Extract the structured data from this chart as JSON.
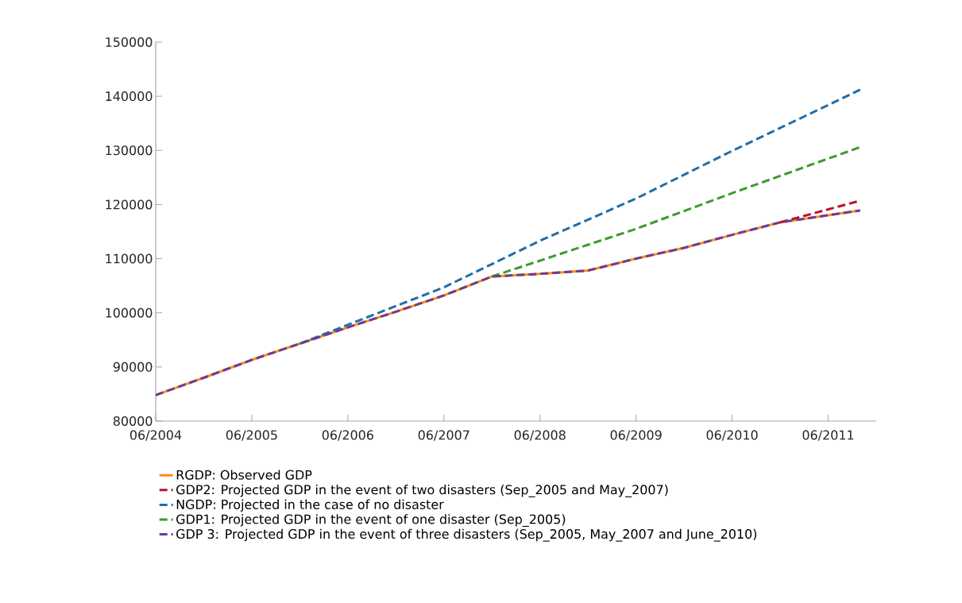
{
  "chart_data": {
    "type": "line",
    "xlim": [
      "2004-06",
      "2011-12"
    ],
    "xticks": [
      {
        "value": "2004-06",
        "label": "06/2004"
      },
      {
        "value": "2005-06",
        "label": "06/2005"
      },
      {
        "value": "2006-06",
        "label": "06/2006"
      },
      {
        "value": "2007-06",
        "label": "06/2007"
      },
      {
        "value": "2008-06",
        "label": "06/2008"
      },
      {
        "value": "2009-06",
        "label": "06/2009"
      },
      {
        "value": "2010-06",
        "label": "06/2010"
      },
      {
        "value": "2011-06",
        "label": "06/2011"
      }
    ],
    "ylim": [
      80000,
      150000
    ],
    "yticks": [
      80000,
      90000,
      100000,
      110000,
      120000,
      130000,
      140000,
      150000
    ],
    "grid": false,
    "legend": "bottom",
    "marker": "none",
    "series": [
      {
        "name": "RGDP: Observed GDP",
        "color": "#ff8c1a",
        "line_style": "solid",
        "x": [
          "2004-06",
          "2004-12",
          "2005-06",
          "2005-12",
          "2006-06",
          "2006-12",
          "2007-06",
          "2007-12",
          "2008-06",
          "2008-12",
          "2009-06",
          "2009-12",
          "2010-06",
          "2010-12",
          "2011-10"
        ],
        "values": [
          84800,
          88000,
          91300,
          94300,
          97300,
          100200,
          103200,
          106700,
          107200,
          107800,
          110000,
          112000,
          114400,
          116700,
          118900
        ]
      },
      {
        "name": "GDP2: Projected GDP in the event of two disasters (Sep_2005 and May_2007)",
        "color": "#c0102a",
        "line_style": "dashed",
        "x": [
          "2010-12",
          "2011-10"
        ],
        "values": [
          116700,
          120700
        ]
      },
      {
        "name": "NGDP: Projected in the case of no disaster",
        "color": "#1f6ea8",
        "line_style": "dashed",
        "x": [
          "2005-12",
          "2006-05",
          "2007-06",
          "2008-06",
          "2009-06",
          "2010-06",
          "2011-10"
        ],
        "values": [
          94300,
          97200,
          104700,
          113300,
          121100,
          129900,
          141200
        ]
      },
      {
        "name": "GDP1: Projected GDP in the event of one disaster (Sep_2005)",
        "color": "#3c9a2c",
        "line_style": "dashed",
        "x": [
          "2007-12",
          "2009-06",
          "2010-06",
          "2011-10"
        ],
        "values": [
          106700,
          115500,
          122100,
          130600
        ]
      },
      {
        "name": "GDP 3: Projected GDP in the event of three disasters (Sep_2005, May_2007 and June_2010)",
        "color": "#6a3d9a",
        "line_style": "dashed",
        "x": [
          "2004-06",
          "2004-12",
          "2005-06",
          "2005-12",
          "2006-06",
          "2006-12",
          "2007-06",
          "2007-12",
          "2008-06",
          "2008-12",
          "2009-06",
          "2009-12",
          "2010-06",
          "2010-12",
          "2011-10"
        ],
        "values": [
          84800,
          88000,
          91300,
          94300,
          97300,
          100200,
          103200,
          106700,
          107200,
          107800,
          110000,
          112000,
          114400,
          116700,
          118900
        ]
      }
    ]
  }
}
